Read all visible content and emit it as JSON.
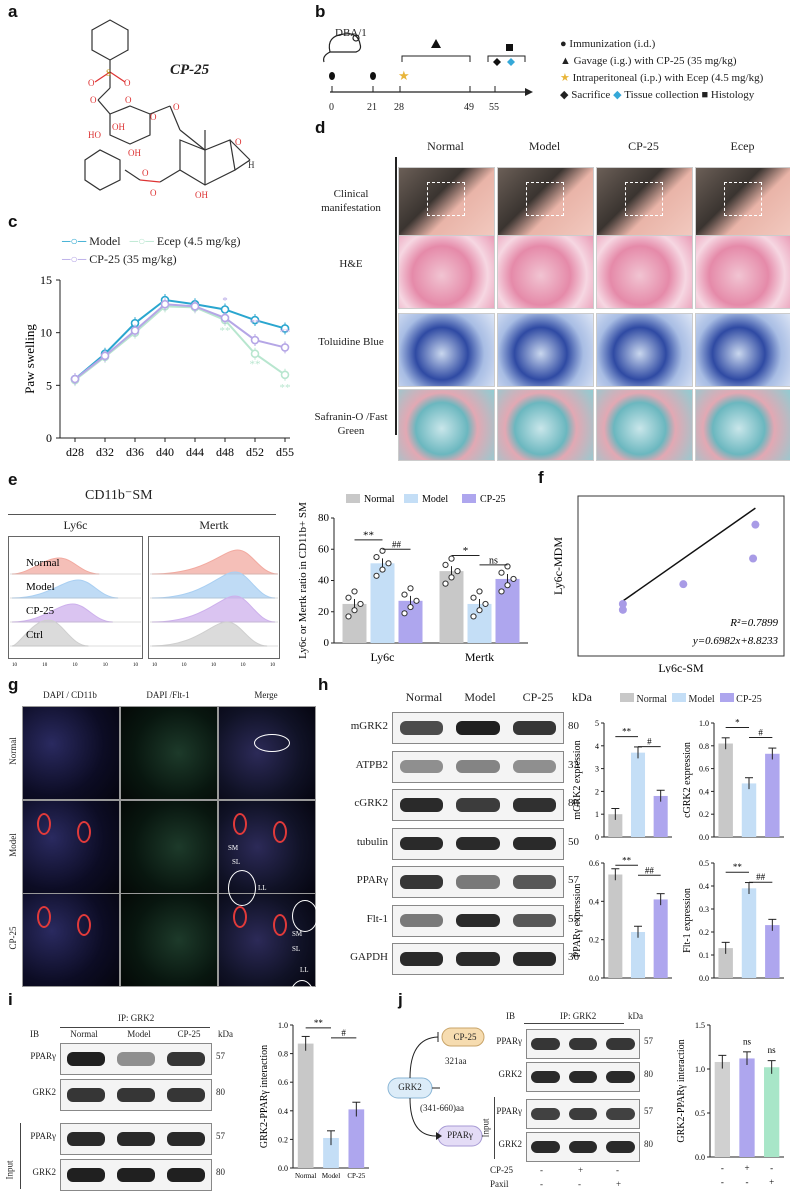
{
  "panels": {
    "a": "a",
    "b": "b",
    "c": "c",
    "d": "d",
    "e": "e",
    "f": "f",
    "g": "g",
    "h": "h",
    "i": "i",
    "j": "j"
  },
  "panel_a": {
    "compound_name": "CP-25",
    "atoms": [
      "S",
      "O",
      "O",
      "O",
      "O",
      "O",
      "OH",
      "HO",
      "OH",
      "O",
      "O",
      "O",
      "H",
      "OH",
      "O",
      "O"
    ]
  },
  "panel_b": {
    "strain": "DBA/1",
    "timepoints": [
      "0",
      "21",
      "28",
      "49",
      "55"
    ],
    "legend": [
      {
        "symbol": "circle",
        "text": "Immunization (i.d.)"
      },
      {
        "symbol": "triangle",
        "text": "Gavage (i.g.) with CP-25 (35 mg/kg)"
      },
      {
        "symbol": "star",
        "text": "Intraperitoneal (i.p.) with Ecep (4.5 mg/kg)"
      },
      {
        "symbol": "diamond-black",
        "text": "Sacrifice"
      },
      {
        "symbol": "diamond-blue",
        "text": "Tissue collection"
      },
      {
        "symbol": "square",
        "text": "Histology"
      }
    ],
    "colors": {
      "star": "#e8b53a",
      "diamond_blue": "#35a8d8"
    }
  },
  "panel_c": {
    "legend": [
      "Model",
      "Ecep (4.5 mg/kg)",
      "CP-25 (35 mg/kg)"
    ],
    "ylabel": "Paw swelling",
    "signif": [
      "*",
      "**",
      "**",
      "**",
      "**",
      "**"
    ]
  },
  "chart_data": [
    {
      "type": "line",
      "id": "paw-swelling",
      "categories": [
        "d28",
        "d32",
        "d36",
        "d40",
        "d44",
        "d48",
        "d52",
        "d55"
      ],
      "ylabel": "Paw swelling",
      "ylim": [
        0,
        15
      ],
      "yticks": [
        0,
        5,
        10,
        15
      ],
      "series": [
        {
          "name": "Model",
          "color": "#2aa6cf",
          "values": [
            5.6,
            8.0,
            10.9,
            13.1,
            12.7,
            12.2,
            11.2,
            10.4
          ]
        },
        {
          "name": "Ecep (4.5 mg/kg)",
          "color": "#b8e6cf",
          "values": [
            5.5,
            7.7,
            10.0,
            12.5,
            12.4,
            11.2,
            8.0,
            6.0
          ]
        },
        {
          "name": "CP-25 (35 mg/kg)",
          "color": "#b5a6e6",
          "values": [
            5.6,
            7.8,
            10.2,
            12.7,
            12.5,
            11.4,
            9.3,
            8.6
          ]
        }
      ]
    },
    {
      "type": "bar",
      "id": "ly6c-mertk",
      "categories": [
        "Ly6c",
        "Mertk"
      ],
      "ylabel": "Ly6c or Mertk ratio in CD11b+ SM",
      "ylim": [
        0,
        80
      ],
      "yticks": [
        0,
        20,
        40,
        60,
        80
      ],
      "series": [
        {
          "name": "Normal",
          "color": "#c8c8c8",
          "values": [
            25,
            46
          ]
        },
        {
          "name": "Model",
          "color": "#c4def6",
          "values": [
            51,
            25
          ]
        },
        {
          "name": "CP-25",
          "color": "#aea6ee",
          "values": [
            27,
            41
          ]
        }
      ],
      "annotations": [
        "**",
        "##",
        "*",
        "ns"
      ]
    },
    {
      "type": "scatter",
      "id": "correlation",
      "xlabel": "Ly6c-SM",
      "ylabel": "Ly6c-MDM",
      "points": [
        [
          15,
          18
        ],
        [
          15,
          15.5
        ],
        [
          41,
          26.5
        ],
        [
          71,
          37.5
        ],
        [
          72,
          52
        ]
      ],
      "fit": {
        "slope": 0.6982,
        "intercept": 8.8233
      },
      "annotations": [
        "R²=0.7899",
        "y=0.6982x+8.8233"
      ]
    },
    {
      "type": "bar",
      "id": "mgrk2",
      "categories": [
        "Normal",
        "Model",
        "CP-25"
      ],
      "values": [
        1.0,
        3.7,
        1.8
      ],
      "ylabel": "mGRK2 expression",
      "ylim": [
        0,
        5
      ],
      "yticks": [
        0,
        1,
        2,
        3,
        4,
        5
      ],
      "annotations": [
        "**",
        "#"
      ]
    },
    {
      "type": "bar",
      "id": "cgrk2",
      "categories": [
        "Normal",
        "Model",
        "CP-25"
      ],
      "values": [
        0.82,
        0.47,
        0.73
      ],
      "ylabel": "cGRK2 expression",
      "ylim": [
        0,
        1.0
      ],
      "yticks": [
        0.0,
        0.2,
        0.4,
        0.6,
        0.8,
        1.0
      ],
      "annotations": [
        "*",
        "#"
      ]
    },
    {
      "type": "bar",
      "id": "pparg",
      "categories": [
        "Normal",
        "Model",
        "CP-25"
      ],
      "values": [
        0.54,
        0.24,
        0.41
      ],
      "ylabel": "PPARγ expression",
      "ylim": [
        0,
        0.6
      ],
      "yticks": [
        0.0,
        0.2,
        0.4,
        0.6
      ],
      "annotations": [
        "**",
        "##"
      ]
    },
    {
      "type": "bar",
      "id": "flt1",
      "categories": [
        "Normal",
        "Model",
        "CP-25"
      ],
      "values": [
        0.13,
        0.39,
        0.23
      ],
      "ylabel": "Flt-1 expression",
      "ylim": [
        0,
        0.5
      ],
      "yticks": [
        0.0,
        0.1,
        0.2,
        0.3,
        0.4,
        0.5
      ],
      "annotations": [
        "**",
        "##"
      ]
    },
    {
      "type": "bar",
      "id": "grk2-pparg-i",
      "categories": [
        "Normal",
        "Model",
        "CP-25"
      ],
      "values": [
        0.87,
        0.21,
        0.41
      ],
      "ylabel": "GRK2-PPARγ interaction",
      "ylim": [
        0,
        1.0
      ],
      "yticks": [
        0.0,
        0.2,
        0.4,
        0.6,
        0.8,
        1.0
      ],
      "annotations": [
        "**",
        "#"
      ]
    },
    {
      "type": "bar",
      "id": "grk2-pparg-j",
      "categories": [
        "-",
        "+",
        "-"
      ],
      "values": [
        1.08,
        1.12,
        1.02
      ],
      "ylabel": "GRK2-PPARγ interaction",
      "ylim": [
        0,
        1.5
      ],
      "yticks": [
        0.0,
        0.5,
        1.0,
        1.5
      ],
      "annotations": [
        "ns",
        "ns"
      ]
    }
  ],
  "panel_d": {
    "columns": [
      "Normal",
      "Model",
      "CP-25",
      "Ecep"
    ],
    "rows": [
      "Clinical manifestation",
      "H&E",
      "Toluidine Blue",
      "Safranin-O /Fast Green"
    ]
  },
  "panel_e": {
    "title": "CD11b⁻SM",
    "hist_titles": [
      "Ly6c",
      "Mertk"
    ],
    "hist_rows": [
      "Normal",
      "Model",
      "CP-25",
      "Ctrl"
    ],
    "hist_colors": [
      "#f2aaa0",
      "#a9cff2",
      "#cdb0ec",
      "#cfcfcf"
    ],
    "legend": [
      "Normal",
      "Model",
      "CP-25"
    ]
  },
  "panel_g": {
    "col_titles": [
      "DAPI / CD11b",
      "DAPI /Flt-1",
      "Merge"
    ],
    "rows": [
      "Normal",
      "Model",
      "CP-25"
    ],
    "tags": [
      "SM",
      "SM",
      "SL",
      "LL",
      "SM",
      "SL",
      "LL"
    ]
  },
  "panel_h": {
    "columns": [
      "Normal",
      "Model",
      "CP-25"
    ],
    "kda_label": "kDa",
    "blots": [
      {
        "name": "mGRK2",
        "kda": "80"
      },
      {
        "name": "ATPB2",
        "kda": "33"
      },
      {
        "name": "cGRK2",
        "kda": "80"
      },
      {
        "name": "tubulin",
        "kda": "50"
      },
      {
        "name": "PPARγ",
        "kda": "57"
      },
      {
        "name": "Flt-1",
        "kda": "55"
      },
      {
        "name": "GAPDH",
        "kda": "36"
      }
    ],
    "legend": [
      "Normal",
      "Model",
      "CP-25"
    ]
  },
  "panel_i": {
    "ip": "IP: GRK2",
    "ib": "IB",
    "columns": [
      "Normal",
      "Model",
      "CP-25"
    ],
    "kda_label": "kDa",
    "blots": [
      {
        "name": "PPARγ",
        "kda": "57"
      },
      {
        "name": "GRK2",
        "kda": "80"
      },
      {
        "name": "PPARγ",
        "kda": "57"
      },
      {
        "name": "GRK2",
        "kda": "80"
      }
    ],
    "input_label": "Input"
  },
  "panel_j": {
    "diagram": {
      "center": "GRK2",
      "top": "CP-25",
      "bottom": "PPARγ",
      "top_link": "321aa",
      "bottom_link": "(341-660)aa"
    },
    "ip": "IP: GRK2",
    "ib": "IB",
    "kda_label": "kDa",
    "blots": [
      {
        "name": "PPARγ",
        "kda": "57"
      },
      {
        "name": "GRK2",
        "kda": "80"
      },
      {
        "name": "PPARγ",
        "kda": "57"
      },
      {
        "name": "GRK2",
        "kda": "80"
      }
    ],
    "input_label": "Input",
    "treatments": [
      {
        "name": "CP-25",
        "values": [
          "-",
          "+",
          "-"
        ]
      },
      {
        "name": "Paxil",
        "values": [
          "-",
          "-",
          "+"
        ]
      }
    ]
  }
}
